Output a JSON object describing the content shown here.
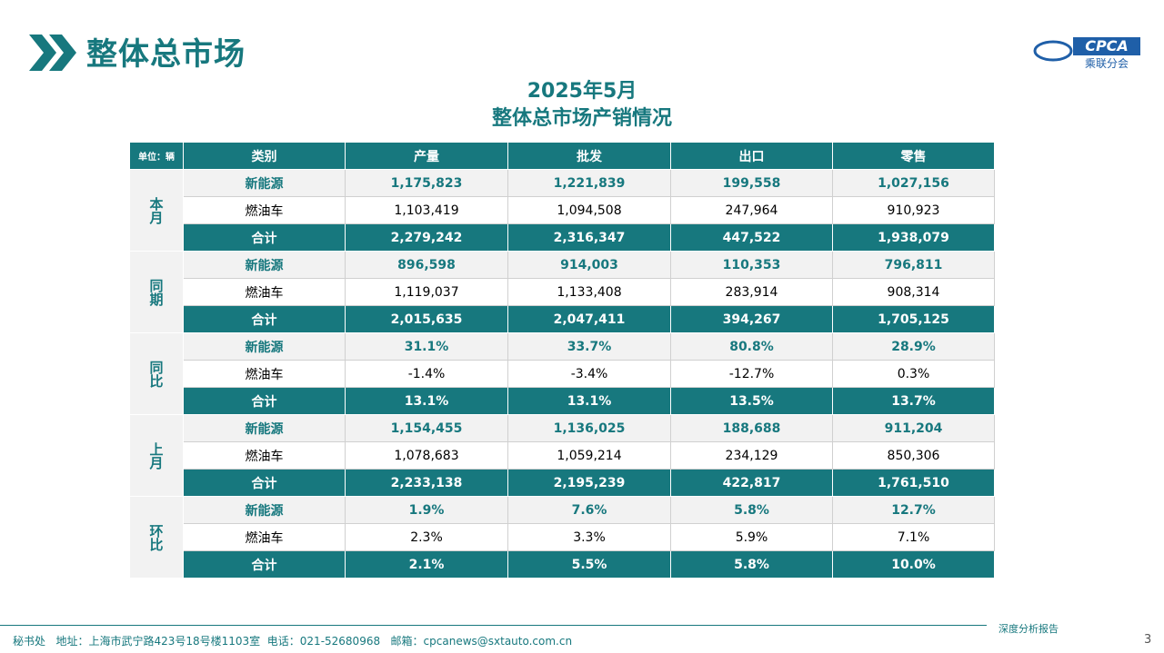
{
  "header": {
    "title": "整体总市场",
    "logo_text": "CPCA",
    "logo_subtext": "乘联分会"
  },
  "table": {
    "title": "2025年5月",
    "subtitle": "整体总市场产销情况",
    "unit": "单位：辆",
    "columns": [
      "类别",
      "产量",
      "批发",
      "出口",
      "零售"
    ],
    "groups": [
      {
        "label": "本月",
        "rows": [
          {
            "name": "新能源",
            "values": [
              "1,175,823",
              "1,221,839",
              "199,558",
              "1,027,156"
            ]
          },
          {
            "name": "燃油车",
            "values": [
              "1,103,419",
              "1,094,508",
              "247,964",
              "910,923"
            ]
          },
          {
            "name": "合计",
            "values": [
              "2,279,242",
              "2,316,347",
              "447,522",
              "1,938,079"
            ]
          }
        ]
      },
      {
        "label": "同期",
        "rows": [
          {
            "name": "新能源",
            "values": [
              "896,598",
              "914,003",
              "110,353",
              "796,811"
            ]
          },
          {
            "name": "燃油车",
            "values": [
              "1,119,037",
              "1,133,408",
              "283,914",
              "908,314"
            ]
          },
          {
            "name": "合计",
            "values": [
              "2,015,635",
              "2,047,411",
              "394,267",
              "1,705,125"
            ]
          }
        ]
      },
      {
        "label": "同比",
        "rows": [
          {
            "name": "新能源",
            "values": [
              "31.1%",
              "33.7%",
              "80.8%",
              "28.9%"
            ]
          },
          {
            "name": "燃油车",
            "values": [
              "-1.4%",
              "-3.4%",
              "-12.7%",
              "0.3%"
            ]
          },
          {
            "name": "合计",
            "values": [
              "13.1%",
              "13.1%",
              "13.5%",
              "13.7%"
            ]
          }
        ]
      },
      {
        "label": "上月",
        "rows": [
          {
            "name": "新能源",
            "values": [
              "1,154,455",
              "1,136,025",
              "188,688",
              "911,204"
            ]
          },
          {
            "name": "燃油车",
            "values": [
              "1,078,683",
              "1,059,214",
              "234,129",
              "850,306"
            ]
          },
          {
            "name": "合计",
            "values": [
              "2,233,138",
              "2,195,239",
              "422,817",
              "1,761,510"
            ]
          }
        ]
      },
      {
        "label": "环比",
        "rows": [
          {
            "name": "新能源",
            "values": [
              "1.9%",
              "7.6%",
              "5.8%",
              "12.7%"
            ]
          },
          {
            "name": "燃油车",
            "values": [
              "2.3%",
              "3.3%",
              "5.9%",
              "7.1%"
            ]
          },
          {
            "name": "合计",
            "values": [
              "2.1%",
              "5.5%",
              "5.8%",
              "10.0%"
            ]
          }
        ]
      }
    ]
  },
  "footer": {
    "contact": "秘书处   地址：上海市武宁路423号18号楼1103室  电话：021-52680968   邮箱：cpcanews@sxtauto.com.cn",
    "tagline": "深度分析报告",
    "page": "3"
  }
}
